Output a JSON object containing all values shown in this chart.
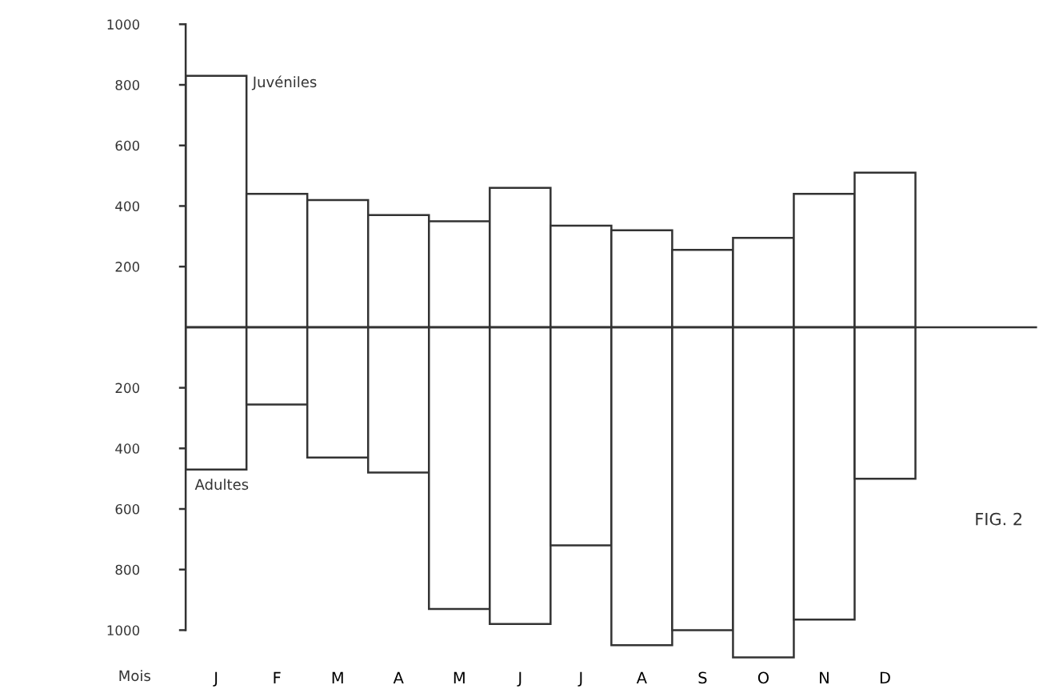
{
  "chart_data": {
    "type": "bar",
    "xlabel": "Mois",
    "categories": [
      "J",
      "F",
      "M",
      "A",
      "M",
      "J",
      "J",
      "A",
      "S",
      "O",
      "N",
      "D"
    ],
    "series": [
      {
        "name": "Juvéniles",
        "color": "#ffffff",
        "values": [
          830,
          440,
          420,
          370,
          350,
          460,
          335,
          320,
          255,
          295,
          440,
          510
        ]
      },
      {
        "name": "Adultes",
        "color": "#ffffff",
        "values": [
          -470,
          -255,
          -430,
          -480,
          -930,
          -980,
          -720,
          -1050,
          -1000,
          -1090,
          -965,
          -500
        ]
      }
    ],
    "stacked": true,
    "ylim": [
      -1100,
      1000
    ],
    "yticks": [
      {
        "value": -1000,
        "label": "1000"
      },
      {
        "value": -800,
        "label": "800"
      },
      {
        "value": -600,
        "label": "600"
      },
      {
        "value": -400,
        "label": "400"
      },
      {
        "value": -200,
        "label": "200"
      },
      200,
      400,
      600,
      800,
      1000
    ],
    "annotations": [
      "FIG. 2"
    ],
    "grid": false
  }
}
